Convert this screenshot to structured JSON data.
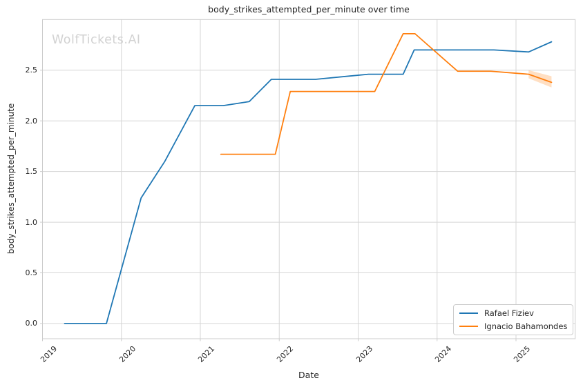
{
  "chart_data": {
    "type": "line",
    "title": "body_strikes_attempted_per_minute over time",
    "xlabel": "Date",
    "ylabel": "body_strikes_attempted_per_minute",
    "watermark": "WolfTickets.AI",
    "grid": true,
    "legend_position": "lower right",
    "x_unit": "year",
    "x_ticks": [
      "2019",
      "2020",
      "2021",
      "2022",
      "2023",
      "2024",
      "2025"
    ],
    "y_ticks": [
      "0.0",
      "0.5",
      "1.0",
      "1.5",
      "2.0",
      "2.5"
    ],
    "xlim": [
      2019.0,
      2025.75
    ],
    "ylim": [
      -0.15,
      3.0
    ],
    "series": [
      {
        "name": "Rafael Fiziev",
        "color": "#1f77b4",
        "x": [
          2019.28,
          2019.81,
          2020.25,
          2020.55,
          2020.93,
          2021.29,
          2021.62,
          2021.9,
          2022.46,
          2023.13,
          2023.57,
          2023.71,
          2024.72,
          2025.16,
          2025.45
        ],
        "y": [
          0.0,
          0.0,
          1.24,
          1.6,
          2.15,
          2.15,
          2.19,
          2.41,
          2.41,
          2.46,
          2.46,
          2.7,
          2.7,
          2.68,
          2.78
        ]
      },
      {
        "name": "Ignacio Bahamondes",
        "color": "#ff7f0e",
        "x": [
          2021.26,
          2021.95,
          2022.14,
          2023.21,
          2023.57,
          2023.72,
          2024.26,
          2024.68,
          2025.16,
          2025.45
        ],
        "y": [
          1.67,
          1.67,
          2.29,
          2.29,
          2.86,
          2.86,
          2.49,
          2.49,
          2.46,
          2.38
        ],
        "band": {
          "x": [
            2025.16,
            2025.45
          ],
          "upper": [
            2.5,
            2.44
          ],
          "lower": [
            2.42,
            2.33
          ]
        }
      }
    ]
  }
}
